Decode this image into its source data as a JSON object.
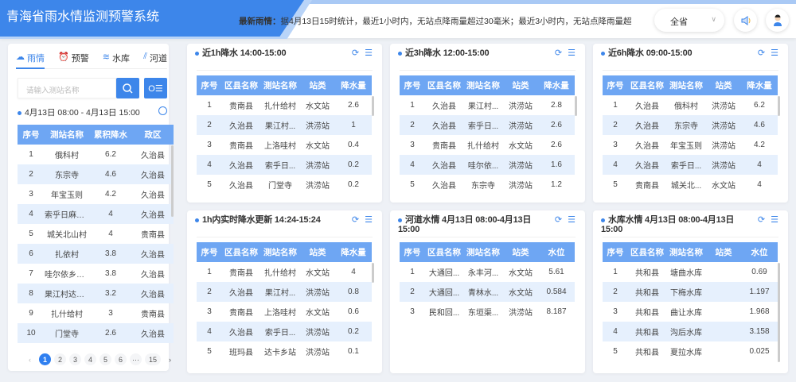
{
  "header": {
    "title": "青海省雨水情监测预警系统",
    "news_label": "最新雨情：",
    "news_text": "据4月13日15时统计，最近1小时内，无站点降雨量超过30毫米；最近3小时内，无站点降雨量超",
    "region": "全省",
    "colors": {
      "brand": "#3d86ea",
      "table_header": "#6ea6f3",
      "row_alt": "#e6f0fd"
    }
  },
  "sidebar": {
    "tabs": [
      {
        "label": "雨情",
        "icon": "cloud-rain-icon"
      },
      {
        "label": "预警",
        "icon": "alarm-icon"
      },
      {
        "label": "水库",
        "icon": "reservoir-icon"
      },
      {
        "label": "河道",
        "icon": "river-icon"
      }
    ],
    "search_placeholder": "请输入测站名称",
    "range": "4月13日 08:00 - 4月13日 15:00",
    "columns": [
      "序号",
      "测站名称",
      "累积降水",
      "政区"
    ],
    "rows": [
      [
        "1",
        "俄科村",
        "6.2",
        "久治县"
      ],
      [
        "2",
        "东宗寺",
        "4.6",
        "久治县"
      ],
      [
        "3",
        "年宝玉则",
        "4.2",
        "久治县"
      ],
      [
        "4",
        "索乎日麻乡...",
        "4",
        "久治县"
      ],
      [
        "5",
        "城关北山村",
        "4",
        "贵南县"
      ],
      [
        "6",
        "扎依村",
        "3.8",
        "久治县"
      ],
      [
        "7",
        "哇尔依乡政府",
        "3.8",
        "久治县"
      ],
      [
        "8",
        "果江村达龙寺",
        "3.2",
        "久治县"
      ],
      [
        "9",
        "扎什给村",
        "3",
        "贵南县"
      ],
      [
        "10",
        "门堂寺",
        "2.6",
        "久治县"
      ]
    ],
    "pages": [
      "1",
      "2",
      "3",
      "4",
      "5",
      "6",
      "···",
      "15"
    ],
    "current_page": "1"
  },
  "cards": [
    {
      "title": "近1h降水 14:00-15:00",
      "columns": [
        "序号",
        "区县名称",
        "测站名称",
        "站类",
        "降水量"
      ],
      "rows": [
        [
          "1",
          "贵南县",
          "扎什给村",
          "水文站",
          "2.6"
        ],
        [
          "2",
          "久治县",
          "果江村...",
          "洪涝站",
          "1"
        ],
        [
          "3",
          "贵南县",
          "上洛哇村",
          "水文站",
          "0.4"
        ],
        [
          "4",
          "久治县",
          "索乎日...",
          "洪涝站",
          "0.2"
        ],
        [
          "5",
          "久治县",
          "门堂寺",
          "洪涝站",
          "0.2"
        ]
      ]
    },
    {
      "title": "近3h降水 12:00-15:00",
      "columns": [
        "序号",
        "区县名称",
        "测站名称",
        "站类",
        "降水量"
      ],
      "rows": [
        [
          "1",
          "久治县",
          "果江村...",
          "洪涝站",
          "2.8"
        ],
        [
          "2",
          "久治县",
          "索乎日...",
          "洪涝站",
          "2.6"
        ],
        [
          "3",
          "贵南县",
          "扎什给村",
          "水文站",
          "2.6"
        ],
        [
          "4",
          "久治县",
          "哇尔依...",
          "洪涝站",
          "1.6"
        ],
        [
          "5",
          "久治县",
          "东宗寺",
          "洪涝站",
          "1.2"
        ]
      ]
    },
    {
      "title": "近6h降水 09:00-15:00",
      "columns": [
        "序号",
        "区县名称",
        "测站名称",
        "站类",
        "降水量"
      ],
      "rows": [
        [
          "1",
          "久治县",
          "俄科村",
          "洪涝站",
          "6.2"
        ],
        [
          "2",
          "久治县",
          "东宗寺",
          "洪涝站",
          "4.6"
        ],
        [
          "3",
          "久治县",
          "年宝玉则",
          "洪涝站",
          "4.2"
        ],
        [
          "4",
          "久治县",
          "索乎日...",
          "洪涝站",
          "4"
        ],
        [
          "5",
          "贵南县",
          "城关北...",
          "水文站",
          "4"
        ]
      ]
    },
    {
      "title": "1h内实时降水更新 14:24-15:24",
      "columns": [
        "序号",
        "区县名称",
        "测站名称",
        "站类",
        "降水量"
      ],
      "rows": [
        [
          "1",
          "贵南县",
          "扎什给村",
          "水文站",
          "4"
        ],
        [
          "2",
          "久治县",
          "果江村...",
          "洪涝站",
          "0.8"
        ],
        [
          "3",
          "贵南县",
          "上洛哇村",
          "水文站",
          "0.6"
        ],
        [
          "4",
          "久治县",
          "索乎日...",
          "洪涝站",
          "0.2"
        ],
        [
          "5",
          "班玛县",
          "达卡乡站",
          "洪涝站",
          "0.1"
        ]
      ]
    },
    {
      "title": "河道水情 4月13日 08:00-4月13日 15:00",
      "columns": [
        "序号",
        "区县名称",
        "测站名称",
        "站类",
        "水位"
      ],
      "rows": [
        [
          "1",
          "大通回...",
          "永丰河...",
          "水文站",
          "5.61"
        ],
        [
          "2",
          "大通回...",
          "青林水...",
          "水文站",
          "0.584"
        ],
        [
          "3",
          "民和回...",
          "东垣渠...",
          "洪涝站",
          "8.187"
        ]
      ]
    },
    {
      "title": "水库水情 4月13日 08:00-4月13日 15:00",
      "columns": [
        "序号",
        "区县名称",
        "测站名称",
        "站类",
        "水位"
      ],
      "rows": [
        [
          "1",
          "共和县",
          "塘曲水库",
          "",
          "0.69"
        ],
        [
          "2",
          "共和县",
          "下梅水库",
          "",
          "1.197"
        ],
        [
          "3",
          "共和县",
          "曲让水库",
          "",
          "1.968"
        ],
        [
          "4",
          "共和县",
          "沟后水库",
          "",
          "3.158"
        ],
        [
          "5",
          "共和县",
          "夏拉水库",
          "",
          "0.025"
        ]
      ]
    }
  ]
}
